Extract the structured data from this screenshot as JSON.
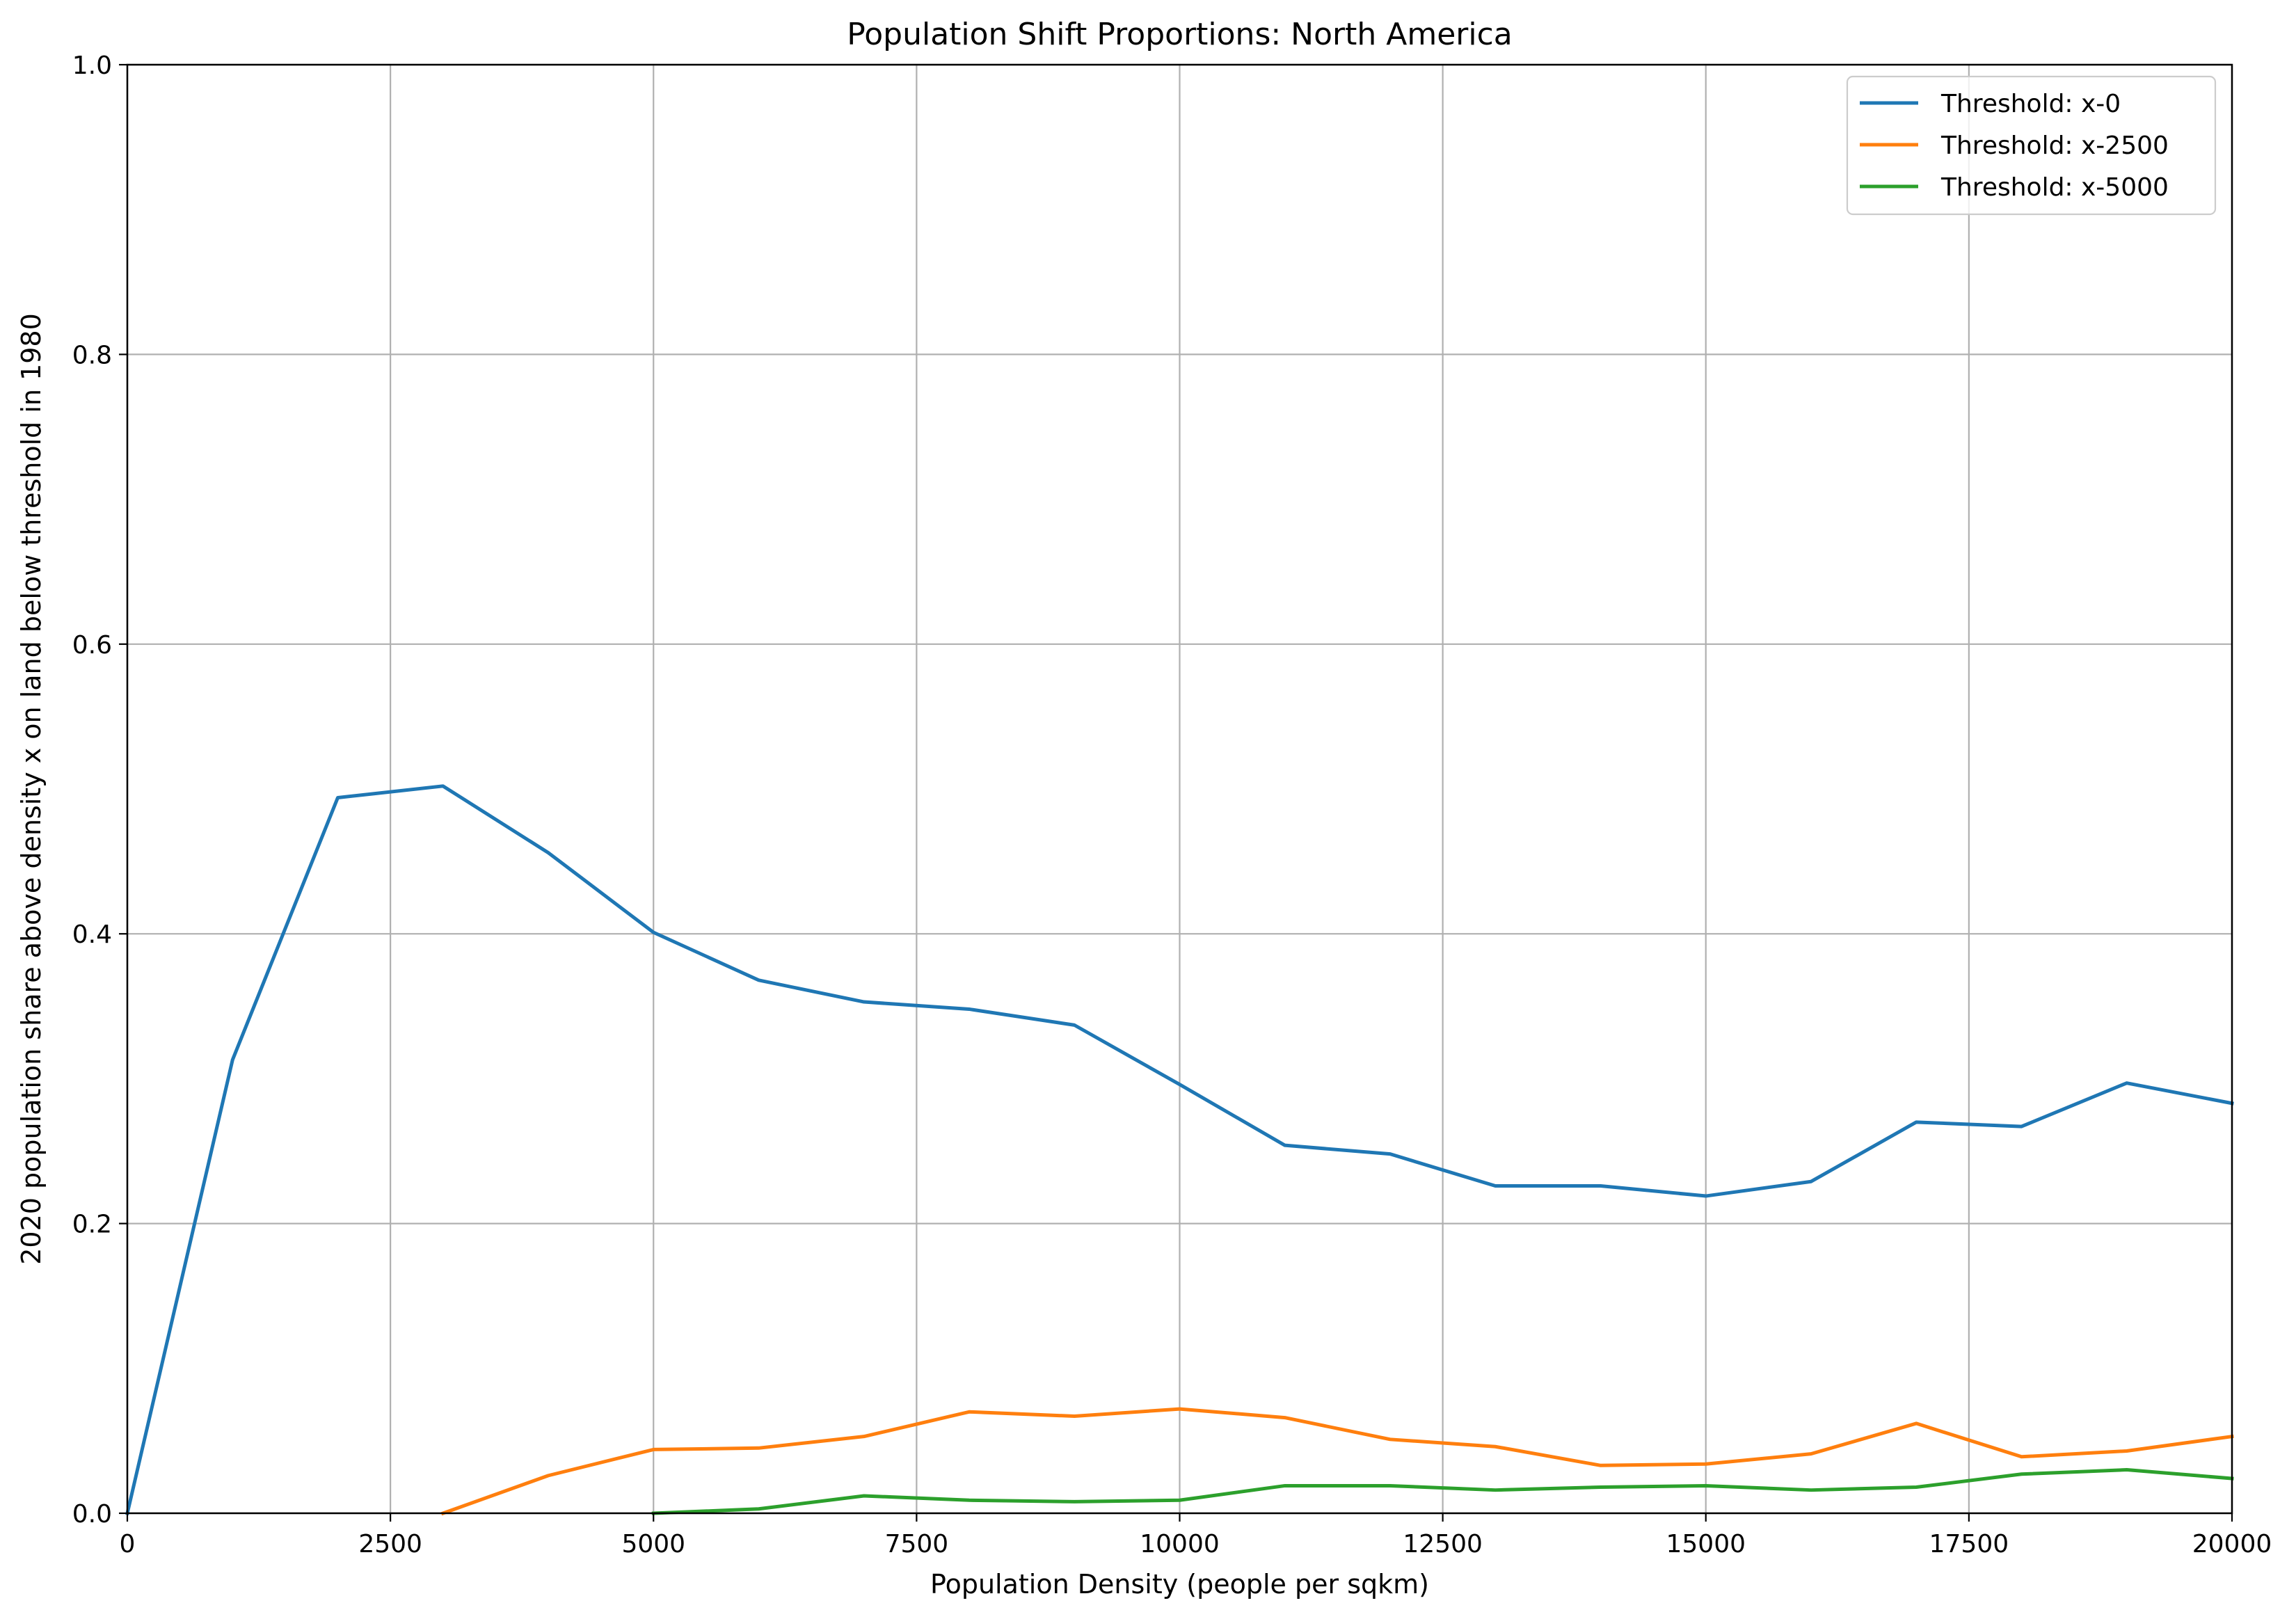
{
  "chart_data": {
    "type": "line",
    "title": "Population Shift Proportions: North America",
    "xlabel": "Population Density (people per sqkm)",
    "ylabel": "2020 population share above density x on land below threshold in 1980",
    "xlim": [
      0,
      20000
    ],
    "ylim": [
      0,
      1.0
    ],
    "xticks": [
      0,
      2500,
      5000,
      7500,
      10000,
      12500,
      15000,
      17500,
      20000
    ],
    "xtick_labels": [
      "0",
      "2500",
      "5000",
      "7500",
      "10000",
      "12500",
      "15000",
      "17500",
      "20000"
    ],
    "yticks": [
      0,
      0.2,
      0.4,
      0.6,
      0.8,
      1.0
    ],
    "ytick_labels": [
      "0.0",
      "0.2",
      "0.4",
      "0.6",
      "0.8",
      "1.0"
    ],
    "grid": true,
    "legend_position": "top-right",
    "series": [
      {
        "name": "Threshold: x-0",
        "color": "#1f77b4",
        "x": [
          0,
          1000,
          2000,
          3000,
          4000,
          5000,
          6000,
          7000,
          8000,
          9000,
          10000,
          11000,
          12000,
          13000,
          14000,
          15000,
          16000,
          17000,
          18000,
          19000,
          20000
        ],
        "y": [
          0.0,
          0.313,
          0.494,
          0.502,
          0.456,
          0.401,
          0.368,
          0.353,
          0.348,
          0.337,
          0.296,
          0.254,
          0.248,
          0.226,
          0.226,
          0.219,
          0.229,
          0.27,
          0.267,
          0.297,
          0.283
        ]
      },
      {
        "name": "Threshold: x-2500",
        "color": "#ff7f0e",
        "x": [
          3000,
          4000,
          5000,
          6000,
          7000,
          8000,
          9000,
          10000,
          11000,
          12000,
          13000,
          14000,
          15000,
          16000,
          17000,
          18000,
          19000,
          20000
        ],
        "y": [
          0.0,
          0.026,
          0.044,
          0.045,
          0.053,
          0.07,
          0.067,
          0.072,
          0.066,
          0.051,
          0.046,
          0.033,
          0.034,
          0.041,
          0.062,
          0.039,
          0.043,
          0.053
        ]
      },
      {
        "name": "Threshold: x-5000",
        "color": "#2ca02c",
        "x": [
          5000,
          6000,
          7000,
          8000,
          9000,
          10000,
          11000,
          12000,
          13000,
          14000,
          15000,
          16000,
          17000,
          18000,
          19000,
          20000
        ],
        "y": [
          0.0,
          0.003,
          0.012,
          0.009,
          0.008,
          0.009,
          0.019,
          0.019,
          0.016,
          0.018,
          0.019,
          0.016,
          0.018,
          0.027,
          0.03,
          0.024
        ]
      }
    ]
  }
}
